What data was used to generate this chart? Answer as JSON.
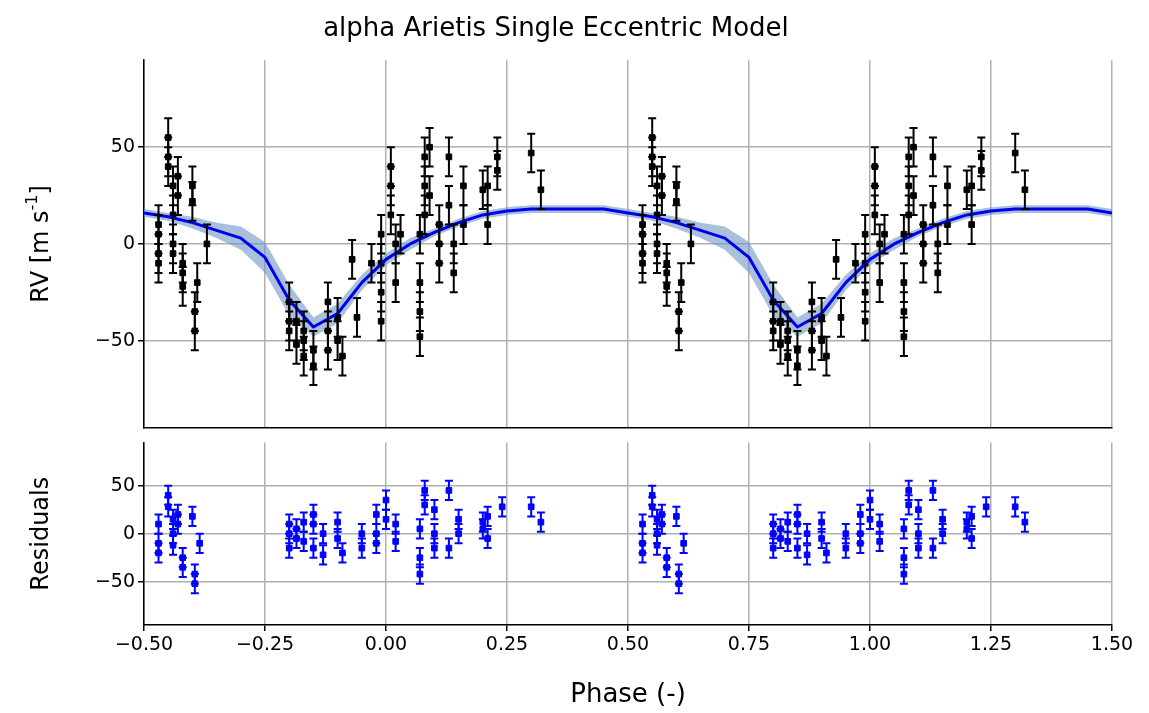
{
  "chart_data": [
    {
      "type": "scatter",
      "title": "alpha Arietis Single Eccentric Model",
      "ylabel": "RV [m s$^{-1}$]",
      "xlim": [
        -0.5,
        1.5
      ],
      "ylim": [
        -95,
        95
      ],
      "xticks": [
        -0.5,
        -0.25,
        0,
        0.25,
        0.5,
        0.75,
        1,
        1.25,
        1.5
      ],
      "yticks": [
        {
          "value": -50,
          "label": "−50"
        },
        {
          "value": 0,
          "label": "0"
        },
        {
          "value": 50,
          "label": "50"
        }
      ],
      "tick_labels": "y",
      "grid": true,
      "marker": "square",
      "series": [
        {
          "type": "line",
          "marker": "none",
          "color": "#0000ee",
          "x": [
            -0.5,
            -0.45,
            -0.4,
            -0.35,
            -0.3,
            -0.25,
            -0.2,
            -0.15,
            -0.1,
            -0.05,
            0,
            0.05,
            0.1,
            0.15,
            0.2,
            0.25,
            0.3,
            0.35,
            0.4,
            0.45,
            0.5,
            0.55,
            0.6,
            0.65,
            0.7,
            0.75,
            0.8,
            0.85,
            0.9,
            0.95,
            1,
            1.05,
            1.1,
            1.15,
            1.2,
            1.25,
            1.3,
            1.35,
            1.4,
            1.45,
            1.5
          ],
          "values": [
            16,
            14,
            11,
            7,
            3,
            -7,
            -29,
            -43,
            -36,
            -20,
            -8,
            0,
            6,
            11,
            15,
            17,
            18,
            18,
            18,
            18,
            16,
            14,
            11,
            7,
            3,
            -7,
            -29,
            -43,
            -36,
            -20,
            -8,
            0,
            6,
            11,
            15,
            17,
            18,
            18,
            18,
            18,
            16
          ],
          "lower": [
            14,
            12,
            8,
            3,
            -3,
            -15,
            -37,
            -48,
            -41,
            -24,
            -11,
            -3,
            4,
            9,
            13,
            15,
            16,
            16,
            16,
            16,
            14,
            12,
            8,
            3,
            -3,
            -15,
            -37,
            -48,
            -41,
            -24,
            -11,
            -3,
            4,
            9,
            13,
            15,
            16,
            16,
            16,
            16,
            14
          ],
          "upper": [
            18,
            16,
            14,
            11,
            9,
            1,
            -21,
            -38,
            -31,
            -16,
            -5,
            3,
            8,
            13,
            17,
            19,
            20,
            20,
            20,
            20,
            18,
            16,
            14,
            11,
            9,
            1,
            -21,
            -38,
            -31,
            -16,
            -5,
            3,
            8,
            13,
            17,
            19,
            20,
            20,
            20,
            20,
            18
          ]
        },
        {
          "color": "#000000",
          "x": [
            -0.47,
            -0.47,
            -0.47,
            -0.47,
            -0.45,
            -0.45,
            -0.45,
            -0.44,
            -0.44,
            -0.44,
            -0.44,
            -0.43,
            -0.43,
            -0.42,
            -0.42,
            -0.42,
            -0.4,
            -0.4,
            -0.395,
            -0.395,
            -0.39,
            -0.37,
            -0.2,
            -0.2,
            -0.2,
            -0.185,
            -0.185,
            -0.17,
            -0.17,
            -0.17,
            -0.15,
            -0.15,
            -0.12,
            -0.12,
            -0.12,
            -0.1,
            -0.1,
            -0.09,
            -0.07,
            -0.06,
            -0.03,
            -0.01,
            -0.01,
            -0.01,
            -0.01,
            0.01,
            0.01,
            0.01,
            0.02,
            0.02,
            0.03,
            0.07,
            0.07,
            0.07,
            0.07,
            0.08,
            0.08,
            0.08,
            0.09,
            0.09,
            0.11,
            0.11,
            0.11,
            0.13,
            0.13,
            0.14,
            0.14,
            0.16,
            0.16,
            0.2,
            0.21,
            0.21,
            0.23,
            0.23,
            0.3,
            0.32,
            0.53,
            0.53,
            0.53,
            0.53,
            0.55,
            0.55,
            0.55,
            0.56,
            0.56,
            0.56,
            0.56,
            0.57,
            0.57,
            0.58,
            0.58,
            0.58,
            0.6,
            0.6,
            0.605,
            0.605,
            0.61,
            0.63,
            0.8,
            0.8,
            0.8,
            0.815,
            0.815,
            0.83,
            0.83,
            0.83,
            0.85,
            0.85,
            0.88,
            0.88,
            0.88,
            0.9,
            0.9,
            0.91,
            0.93,
            0.94,
            0.97,
            0.99,
            0.99,
            0.99,
            0.99,
            1.01,
            1.01,
            1.01,
            1.02,
            1.02,
            1.03,
            1.07,
            1.07,
            1.07,
            1.07,
            1.08,
            1.08,
            1.08,
            1.09,
            1.09,
            1.11,
            1.11,
            1.11,
            1.13,
            1.13,
            1.14,
            1.14,
            1.16,
            1.16,
            1.2,
            1.21,
            1.21,
            1.23,
            1.23,
            1.3,
            1.32
          ],
          "values": [
            5,
            -5,
            -10,
            10,
            55,
            45,
            40,
            30,
            15,
            0,
            -5,
            25,
            35,
            -15,
            -22,
            -10,
            30,
            22,
            -35,
            -45,
            -20,
            0,
            -30,
            -40,
            -45,
            -40,
            -52,
            -45,
            -58,
            -50,
            -55,
            -63,
            -30,
            -45,
            -55,
            -38,
            -50,
            -58,
            -8,
            -38,
            -10,
            -10,
            -25,
            -40,
            5,
            30,
            15,
            40,
            0,
            -20,
            5,
            -20,
            -35,
            -48,
            5,
            15,
            30,
            45,
            50,
            25,
            -10,
            0,
            10,
            20,
            45,
            0,
            -15,
            10,
            30,
            28,
            10,
            30,
            45,
            38,
            47,
            28,
            5,
            -5,
            -10,
            10,
            55,
            45,
            40,
            30,
            15,
            0,
            -5,
            25,
            35,
            -15,
            -22,
            -10,
            30,
            22,
            -35,
            -45,
            -20,
            0,
            -30,
            -40,
            -45,
            -40,
            -52,
            -45,
            -58,
            -50,
            -55,
            -63,
            -30,
            -45,
            -55,
            -38,
            -50,
            -58,
            -8,
            -38,
            -10,
            -10,
            -25,
            -40,
            5,
            30,
            15,
            40,
            0,
            -20,
            5,
            -20,
            -35,
            -48,
            5,
            15,
            30,
            45,
            50,
            25,
            -10,
            0,
            10,
            20,
            45,
            0,
            -15,
            10,
            30,
            28,
            10,
            30,
            45,
            38,
            47,
            28
          ],
          "errors": [
            10,
            10,
            10,
            10,
            10,
            10,
            10,
            10,
            10,
            10,
            10,
            10,
            10,
            10,
            10,
            10,
            10,
            10,
            10,
            10,
            10,
            10,
            10,
            10,
            10,
            10,
            10,
            10,
            10,
            10,
            10,
            10,
            10,
            10,
            10,
            10,
            10,
            10,
            10,
            10,
            10,
            10,
            10,
            10,
            10,
            10,
            10,
            10,
            10,
            10,
            10,
            10,
            10,
            10,
            10,
            10,
            10,
            10,
            10,
            10,
            10,
            10,
            10,
            10,
            10,
            10,
            10,
            10,
            10,
            10,
            10,
            10,
            10,
            10,
            10,
            10,
            10,
            10,
            10,
            10,
            10,
            10,
            10,
            10,
            10,
            10,
            10,
            10,
            10,
            10,
            10,
            10,
            10,
            10,
            10,
            10,
            10,
            10,
            10,
            10,
            10,
            10,
            10,
            10,
            10,
            10,
            10,
            10,
            10,
            10,
            10,
            10,
            10,
            10,
            10,
            10,
            10,
            10,
            10,
            10,
            10,
            10,
            10,
            10,
            10,
            10,
            10,
            10,
            10,
            10,
            10,
            10,
            10,
            10,
            10,
            10,
            10,
            10,
            10,
            10,
            10,
            10,
            10,
            10,
            10,
            10,
            10,
            10,
            10,
            10,
            10,
            10
          ]
        }
      ]
    },
    {
      "type": "scatter",
      "xlabel": "Phase (-)",
      "ylabel": "Residuals",
      "xlim": [
        -0.5,
        1.5
      ],
      "ylim": [
        -95,
        95
      ],
      "xticks": [
        {
          "value": -0.5,
          "label": "−0.50"
        },
        {
          "value": -0.25,
          "label": "−0.25"
        },
        {
          "value": 0,
          "label": "0.00"
        },
        {
          "value": 0.25,
          "label": "0.25"
        },
        {
          "value": 0.5,
          "label": "0.50"
        },
        {
          "value": 0.75,
          "label": "0.75"
        },
        {
          "value": 1,
          "label": "1.00"
        },
        {
          "value": 1.25,
          "label": "1.25"
        },
        {
          "value": 1.5,
          "label": "1.50"
        }
      ],
      "yticks": [
        {
          "value": -50,
          "label": "−50"
        },
        {
          "value": 0,
          "label": "0"
        },
        {
          "value": 50,
          "label": "50"
        }
      ],
      "grid": true,
      "marker": "square",
      "series": [
        {
          "color": "#0000ff",
          "x": [
            -0.47,
            -0.47,
            -0.47,
            -0.45,
            -0.45,
            -0.44,
            -0.44,
            -0.44,
            -0.43,
            -0.43,
            -0.42,
            -0.42,
            -0.4,
            -0.395,
            -0.395,
            -0.385,
            -0.2,
            -0.2,
            -0.2,
            -0.185,
            -0.185,
            -0.17,
            -0.17,
            -0.15,
            -0.15,
            -0.15,
            -0.13,
            -0.13,
            -0.1,
            -0.1,
            -0.09,
            -0.05,
            -0.05,
            -0.02,
            -0.02,
            -0.02,
            0,
            0,
            0.02,
            0.02,
            0.07,
            0.07,
            0.07,
            0.08,
            0.08,
            0.1,
            0.1,
            0.1,
            0.13,
            0.13,
            0.15,
            0.15,
            0.2,
            0.2,
            0.21,
            0.21,
            0.24,
            0.3,
            0.32,
            0.53,
            0.53,
            0.53,
            0.55,
            0.55,
            0.56,
            0.56,
            0.56,
            0.57,
            0.57,
            0.58,
            0.58,
            0.6,
            0.605,
            0.605,
            0.615,
            0.8,
            0.8,
            0.8,
            0.815,
            0.815,
            0.83,
            0.83,
            0.85,
            0.85,
            0.85,
            0.87,
            0.87,
            0.9,
            0.9,
            0.91,
            0.95,
            0.95,
            0.98,
            0.98,
            0.98,
            1,
            1,
            1.02,
            1.02,
            1.07,
            1.07,
            1.07,
            1.08,
            1.08,
            1.1,
            1.1,
            1.1,
            1.13,
            1.13,
            1.15,
            1.15,
            1.2,
            1.2,
            1.21,
            1.21,
            1.24,
            1.3,
            1.32
          ],
          "values": [
            -10,
            -20,
            10,
            40,
            28,
            0,
            -12,
            15,
            20,
            10,
            -25,
            -35,
            18,
            -42,
            -52,
            -10,
            0,
            -15,
            10,
            5,
            -5,
            12,
            -8,
            10,
            -15,
            20,
            -22,
            0,
            12,
            -5,
            -20,
            0,
            -15,
            -10,
            20,
            0,
            35,
            15,
            10,
            -8,
            -25,
            -42,
            5,
            30,
            45,
            0,
            25,
            -15,
            45,
            -15,
            15,
            0,
            12,
            5,
            -5,
            18,
            28,
            28,
            12,
            -10,
            -20,
            10,
            40,
            28,
            0,
            -12,
            15,
            20,
            10,
            -25,
            -35,
            18,
            -42,
            -52,
            -10,
            0,
            -15,
            10,
            5,
            -5,
            12,
            -8,
            10,
            -15,
            20,
            -22,
            0,
            12,
            -5,
            -20,
            0,
            -15,
            -10,
            20,
            0,
            35,
            15,
            10,
            -8,
            -25,
            -42,
            5,
            30,
            45,
            0,
            25,
            -15,
            45,
            -15,
            15,
            0,
            12,
            5,
            -5,
            18,
            28,
            28,
            12
          ],
          "errors": [
            10,
            10,
            10,
            10,
            10,
            10,
            10,
            10,
            10,
            10,
            10,
            10,
            10,
            10,
            10,
            10,
            10,
            10,
            10,
            10,
            10,
            10,
            10,
            10,
            10,
            10,
            10,
            10,
            10,
            10,
            10,
            10,
            10,
            10,
            10,
            10,
            10,
            10,
            10,
            10,
            10,
            10,
            10,
            10,
            10,
            10,
            10,
            10,
            10,
            10,
            10,
            10,
            10,
            10,
            10,
            10,
            10,
            10,
            10,
            10,
            10,
            10,
            10,
            10,
            10,
            10,
            10,
            10,
            10,
            10,
            10,
            10,
            10,
            10,
            10,
            10,
            10,
            10,
            10,
            10,
            10,
            10,
            10,
            10,
            10,
            10,
            10,
            10,
            10,
            10,
            10,
            10,
            10,
            10,
            10,
            10,
            10,
            10,
            10,
            10,
            10,
            10,
            10,
            10,
            10,
            10,
            10,
            10,
            10,
            10,
            10,
            10,
            10,
            10,
            10,
            10,
            10,
            10
          ]
        }
      ]
    }
  ]
}
